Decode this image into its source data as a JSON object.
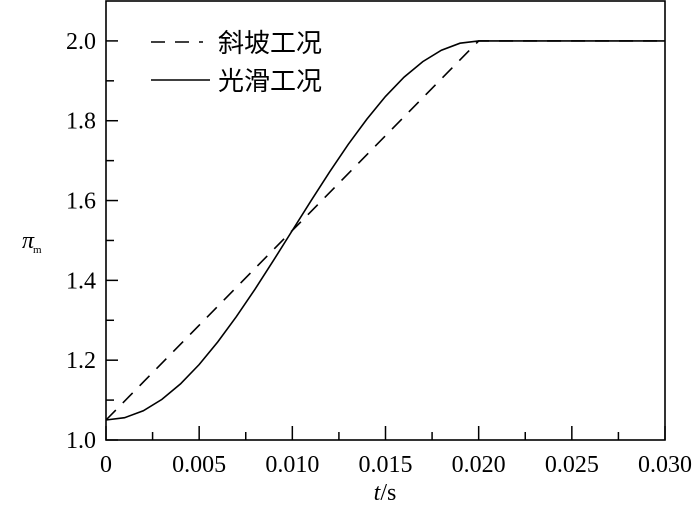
{
  "chart_data": {
    "type": "line",
    "xlabel_italic": "t",
    "xlabel_unit": "/s",
    "ylabel_symbol": "π",
    "ylabel_sub": "m",
    "xlim": [
      0,
      0.03
    ],
    "ylim": [
      1.0,
      2.1
    ],
    "x_ticks": [
      0,
      0.005,
      0.01,
      0.015,
      0.02,
      0.025,
      0.03
    ],
    "x_tick_labels": [
      "0",
      "0.005",
      "0.010",
      "0.015",
      "0.020",
      "0.025",
      "0.030"
    ],
    "y_ticks": [
      1.0,
      1.2,
      1.4,
      1.6,
      1.8,
      2.0
    ],
    "y_tick_labels": [
      "1.0",
      "1.2",
      "1.4",
      "1.6",
      "1.8",
      "2.0"
    ],
    "grid": false,
    "legend_position": "top-left",
    "series": [
      {
        "name": "斜坡工况",
        "style": "dashed",
        "color": "#000000",
        "x": [
          0,
          0.02,
          0.03
        ],
        "y": [
          1.05,
          2.0,
          2.0
        ]
      },
      {
        "name": "光滑工况",
        "style": "solid",
        "color": "#000000",
        "x": [
          0,
          0.001,
          0.002,
          0.003,
          0.004,
          0.005,
          0.006,
          0.007,
          0.008,
          0.009,
          0.01,
          0.011,
          0.012,
          0.013,
          0.014,
          0.015,
          0.016,
          0.017,
          0.018,
          0.019,
          0.02,
          0.03
        ],
        "y": [
          1.05,
          1.0558,
          1.0732,
          1.1018,
          1.1406,
          1.1891,
          1.2458,
          1.3093,
          1.3782,
          1.4507,
          1.525,
          1.5993,
          1.6718,
          1.7407,
          1.8042,
          1.8609,
          1.9094,
          1.9482,
          1.9768,
          1.9942,
          2.0,
          2.0
        ]
      }
    ]
  }
}
